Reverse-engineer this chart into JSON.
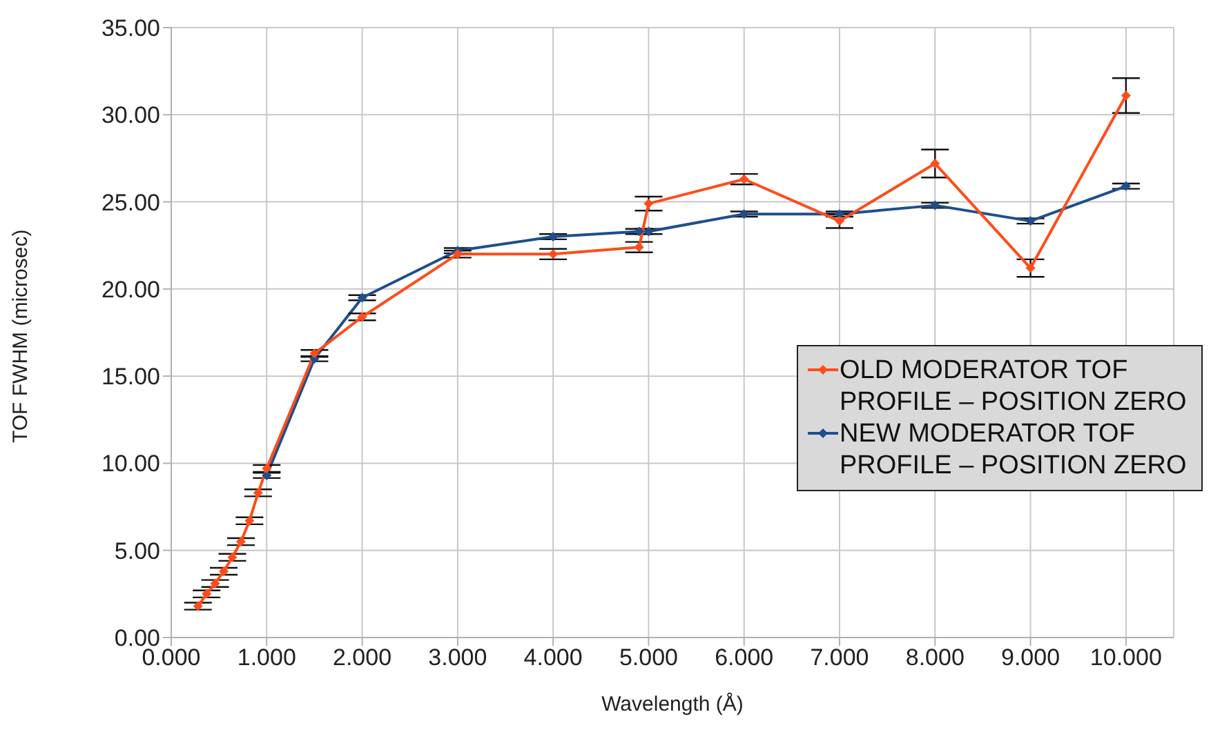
{
  "chart_data": {
    "type": "line",
    "xlabel": "Wavelength (Å)",
    "ylabel": "TOF FWHM (microsec)",
    "series": [
      {
        "name": "OLD MODERATOR TOF PROFILE – POSITION ZERO",
        "color": "#ff4c1a",
        "x": [
          0.28,
          0.37,
          0.46,
          0.55,
          0.64,
          0.73,
          0.82,
          0.91,
          1.0,
          1.5,
          2.0,
          3.0,
          4.0,
          4.9,
          5.0,
          6.0,
          7.0,
          8.0,
          9.0,
          10.0
        ],
        "values": [
          1.8,
          2.5,
          3.1,
          3.8,
          4.6,
          5.5,
          6.7,
          8.3,
          9.7,
          16.3,
          18.4,
          22.0,
          22.0,
          22.4,
          24.9,
          26.3,
          23.9,
          27.2,
          21.2,
          31.1
        ],
        "errors": [
          0.2,
          0.2,
          0.2,
          0.2,
          0.2,
          0.2,
          0.2,
          0.2,
          0.2,
          0.2,
          0.2,
          0.2,
          0.3,
          0.3,
          0.4,
          0.3,
          0.4,
          0.8,
          0.5,
          1.0
        ]
      },
      {
        "name": "NEW MODERATOR TOF PROFILE – POSITION ZERO",
        "color": "#1f4e8c",
        "x": [
          1.0,
          1.5,
          2.0,
          3.0,
          4.0,
          4.9,
          5.0,
          6.0,
          7.0,
          8.0,
          9.0,
          10.0
        ],
        "values": [
          9.3,
          16.0,
          19.5,
          22.2,
          23.0,
          23.3,
          23.3,
          24.3,
          24.3,
          24.8,
          23.9,
          25.9
        ],
        "errors": [
          0.15,
          0.15,
          0.15,
          0.15,
          0.15,
          0.15,
          0.15,
          0.15,
          0.15,
          0.15,
          0.15,
          0.15
        ]
      }
    ],
    "xlim": [
      0,
      10.5
    ],
    "xticks": [
      {
        "value": 0,
        "label": "0.000"
      },
      {
        "value": 1,
        "label": "1.000"
      },
      {
        "value": 2,
        "label": "2.000"
      },
      {
        "value": 3,
        "label": "3.000"
      },
      {
        "value": 4,
        "label": "4.000"
      },
      {
        "value": 5,
        "label": "5.000"
      },
      {
        "value": 6,
        "label": "6.000"
      },
      {
        "value": 7,
        "label": "7.000"
      },
      {
        "value": 8,
        "label": "8.000"
      },
      {
        "value": 9,
        "label": "9.000"
      },
      {
        "value": 10,
        "label": "10.000"
      }
    ],
    "ylim": [
      0,
      35
    ],
    "yticks": [
      {
        "value": 0,
        "label": "0.00"
      },
      {
        "value": 5,
        "label": "5.00"
      },
      {
        "value": 10,
        "label": "10.00"
      },
      {
        "value": 15,
        "label": "15.00"
      },
      {
        "value": 20,
        "label": "20.00"
      },
      {
        "value": 25,
        "label": "25.00"
      },
      {
        "value": 30,
        "label": "30.00"
      },
      {
        "value": 35,
        "label": "35.00"
      }
    ],
    "grid": true,
    "legend": "right",
    "marker": "diamond",
    "line_style": "solid"
  }
}
